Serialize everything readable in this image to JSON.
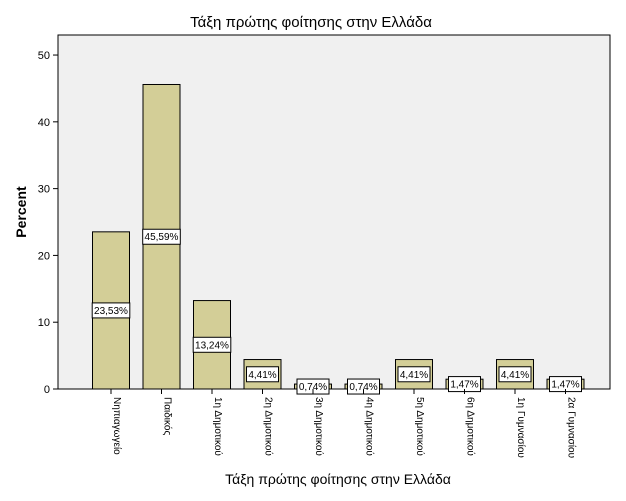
{
  "chart_data": {
    "type": "bar",
    "title": "Τάξη πρώτης φοίτησης στην Ελλάδα",
    "xlabel": "Τάξη πρώτης φοίτησης στην Ελλάδα",
    "ylabel": "Percent",
    "ylim": [
      0,
      53
    ],
    "yticks": [
      0,
      10,
      20,
      30,
      40,
      50
    ],
    "grid": false,
    "categories": [
      "Νηπιαγωγείο",
      "Παιδικός",
      "1η Δημοτικού",
      "2η Δημοτικού",
      "3η Δημοτικού",
      "4η Δημοτικού",
      "5η Δημοτικού",
      "6η Δημοτικού",
      "1η Γυμνασίου",
      "2α Γυμνασίου"
    ],
    "values": [
      23.53,
      45.59,
      13.24,
      4.41,
      0.74,
      0.74,
      4.41,
      1.47,
      4.41,
      1.47
    ],
    "data_labels": [
      "23,53%",
      "45,59%",
      "13,24%",
      "4,41%",
      "0,74%",
      "0,74%",
      "4,41%",
      "1,47%",
      "4,41%",
      "1,47%"
    ],
    "colors": {
      "bar_fill": "#d3ce97",
      "bar_stroke": "#000000",
      "plot_background": "#f0f0f0",
      "label_box_fill": "#ffffff"
    }
  }
}
